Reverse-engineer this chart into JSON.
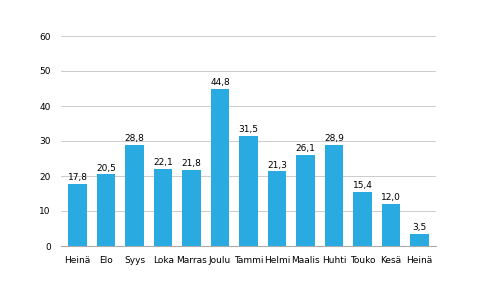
{
  "categories": [
    "Heinä",
    "Elo",
    "Syys",
    "Loka",
    "Marras",
    "Joulu",
    "Tammi",
    "Helmi",
    "Maalis",
    "Huhti",
    "Touko",
    "Kesä",
    "Heinä"
  ],
  "values": [
    17.8,
    20.5,
    28.8,
    22.1,
    21.8,
    44.8,
    31.5,
    21.3,
    26.1,
    28.9,
    15.4,
    12.0,
    3.5
  ],
  "bar_color": "#29ABE2",
  "ylim": [
    0,
    60
  ],
  "yticks": [
    0,
    10,
    20,
    30,
    40,
    50,
    60
  ],
  "value_fontsize": 6.5,
  "tick_fontsize": 6.5,
  "year_fontsize": 6.5,
  "bar_width": 0.65,
  "grid_color": "#cccccc",
  "spine_color": "#aaaaaa"
}
